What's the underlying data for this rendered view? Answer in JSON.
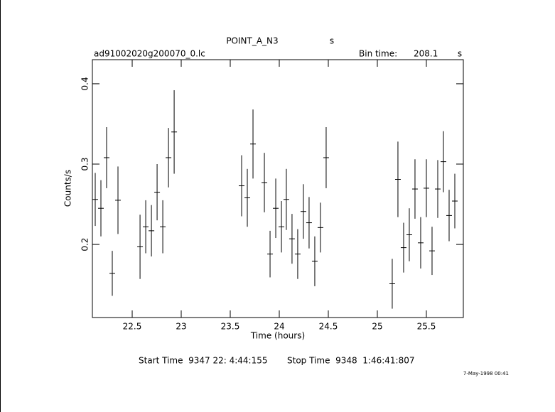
{
  "chart_data": {
    "type": "errorbar",
    "title": "POINT_A_N3",
    "title_unit": "s",
    "subtitle": "ad91002020g200070_0.lc",
    "bin_time_label": "Bin time:",
    "bin_time": "208.1",
    "bin_time_unit": "s",
    "xlabel": "Time (hours)",
    "ylabel": "Counts/s",
    "start_time": "Start Time  9347 22: 4:44:155",
    "stop_time": "Stop Time  9348  1:46:41:807",
    "footnote": "7-May-1998 00:41",
    "color": "#000000",
    "xerr": 0.029,
    "x": [
      22.123,
      22.181,
      22.239,
      22.297,
      22.355,
      22.58,
      22.638,
      22.696,
      22.754,
      22.812,
      22.87,
      22.928,
      23.616,
      23.674,
      23.732,
      23.848,
      23.906,
      23.964,
      24.022,
      24.072,
      24.13,
      24.188,
      24.246,
      24.304,
      24.362,
      24.42,
      24.478,
      25.152,
      25.21,
      25.268,
      25.326,
      25.384,
      25.442,
      25.5,
      25.558,
      25.616,
      25.674,
      25.732,
      25.79
    ],
    "values": [
      0.256,
      0.245,
      0.308,
      0.164,
      0.255,
      0.197,
      0.222,
      0.217,
      0.265,
      0.222,
      0.308,
      0.34,
      0.273,
      0.258,
      0.325,
      0.277,
      0.188,
      0.245,
      0.222,
      0.256,
      0.207,
      0.188,
      0.241,
      0.227,
      0.179,
      0.221,
      0.308,
      0.151,
      0.281,
      0.196,
      0.212,
      0.269,
      0.202,
      0.27,
      0.192,
      0.269,
      0.303,
      0.236,
      0.254
    ],
    "errors": [
      0.033,
      0.035,
      0.038,
      0.028,
      0.042,
      0.04,
      0.033,
      0.032,
      0.035,
      0.033,
      0.037,
      0.052,
      0.038,
      0.036,
      0.043,
      0.037,
      0.029,
      0.037,
      0.032,
      0.038,
      0.031,
      0.031,
      0.034,
      0.032,
      0.031,
      0.031,
      0.038,
      0.031,
      0.047,
      0.031,
      0.033,
      0.037,
      0.032,
      0.036,
      0.03,
      0.036,
      0.038,
      0.032,
      0.034
    ],
    "xlim": [
      22.094,
      25.877
    ],
    "ylim": [
      0.109,
      0.43
    ],
    "xticks": [
      22.5,
      23,
      23.5,
      24,
      24.5,
      25,
      25.5
    ],
    "yticks": [
      0.2,
      0.3,
      0.4
    ]
  }
}
